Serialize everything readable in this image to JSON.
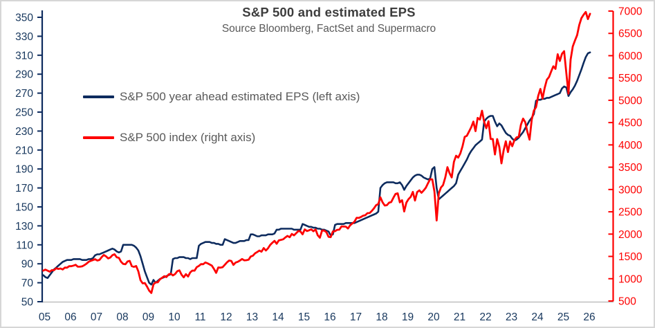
{
  "header": {
    "title": "S&P 500 and estimated EPS",
    "subtitle": "Source Bloomberg, FactSet and Supermacro"
  },
  "legend": {
    "items": [
      {
        "label": "S&P 500 year ahead estimated EPS (left axis)",
        "color": "#0d2b5e",
        "series": "eps"
      },
      {
        "label": "S&P 500 index (right axis)",
        "color": "#fe0000",
        "series": "index"
      }
    ]
  },
  "colors": {
    "navy_line": "#0d2b5e",
    "red_line": "#fe0000",
    "axis_label_navy": "#17375d",
    "axis_label_red": "#fe0000",
    "baseline_gray": "#bfbfbf",
    "title_gray": "#3d3d3d",
    "subtitle_gray": "#595959"
  },
  "chart_data": {
    "type": "line",
    "title": "S&P 500 and estimated EPS",
    "source_note": "Source Bloomberg, FactSet and Supermacro",
    "legend_entries": [
      "S&P 500 year ahead estimated EPS (left axis)",
      "S&P 500 index (right axis)"
    ],
    "grid": false,
    "legend_position": "inside-top-left",
    "x_axis": {
      "labels": [
        "05",
        "06",
        "07",
        "08",
        "09",
        "10",
        "11",
        "12",
        "13",
        "14",
        "15",
        "16",
        "17",
        "18",
        "19",
        "20",
        "21",
        "22",
        "23",
        "24",
        "25",
        "26"
      ],
      "start_year": 2005,
      "end_year": 2026,
      "interval": "monthly",
      "color": "#17375d"
    },
    "left_axis": {
      "title": "S&P 500 year ahead estimated EPS",
      "min": 50,
      "max": 350,
      "step": 20,
      "color": "#0d2b5e",
      "label_color": "#17375d"
    },
    "right_axis": {
      "title": "S&P 500 index",
      "min": 500,
      "max": 7000,
      "step": 500,
      "color": "#fe0000",
      "label_color": "#fe0000"
    },
    "axis_line_gray": "#bfbfbf",
    "series": [
      {
        "id": "eps",
        "name": "S&P 500 year ahead estimated EPS",
        "axis": "left",
        "color": "#0d2b5e",
        "start": "2005-01",
        "interval": "monthly",
        "values": [
          78,
          76,
          75,
          78,
          81,
          84,
          86,
          88,
          90,
          92,
          93,
          94,
          94,
          94,
          95,
          95,
          95,
          95,
          94,
          94,
          94,
          95,
          95,
          96,
          99,
          100,
          100,
          101,
          102,
          103,
          104,
          105,
          106,
          105,
          103,
          102,
          103,
          110,
          110,
          110,
          110,
          110,
          109,
          107,
          104,
          98,
          90,
          82,
          76,
          70,
          68,
          73,
          70,
          72,
          74,
          75,
          76,
          77,
          78,
          79,
          95,
          96,
          96,
          97,
          97,
          97,
          96,
          96,
          95,
          96,
          96,
          96,
          109,
          111,
          112,
          113,
          113,
          113,
          112,
          112,
          111,
          111,
          110,
          110,
          116,
          115,
          114,
          113,
          112,
          112,
          113,
          114,
          114,
          114,
          115,
          115,
          121,
          121,
          120,
          119,
          119,
          120,
          120,
          120,
          121,
          121,
          121,
          122,
          126,
          126,
          127,
          127,
          127,
          127,
          127,
          127,
          126,
          126,
          126,
          126,
          132,
          131,
          130,
          129,
          129,
          128,
          128,
          127,
          127,
          126,
          126,
          125,
          124,
          120,
          121,
          131,
          132,
          132,
          132,
          132,
          133,
          133,
          133,
          133,
          133,
          134,
          135,
          136,
          137,
          138,
          139,
          140,
          141,
          142,
          143,
          145,
          170,
          173,
          175,
          176,
          176,
          176,
          176,
          175,
          175,
          176,
          173,
          168,
          172,
          175,
          178,
          181,
          183,
          184,
          184,
          183,
          181,
          180,
          179,
          180,
          190,
          192,
          170,
          158,
          160,
          162,
          164,
          166,
          168,
          170,
          172,
          175,
          184,
          188,
          192,
          196,
          200,
          205,
          209,
          212,
          215,
          217,
          219,
          221,
          240,
          243,
          245,
          246,
          246,
          240,
          235,
          238,
          236,
          232,
          228,
          226,
          225,
          222,
          220,
          221,
          223,
          226,
          229,
          233,
          237,
          241,
          244,
          248,
          262,
          263,
          263,
          264,
          264,
          265,
          265,
          266,
          267,
          268,
          269,
          270,
          275,
          277,
          276,
          267,
          271,
          274,
          278,
          283,
          289,
          295,
          302,
          308,
          312,
          313
        ]
      },
      {
        "id": "index",
        "name": "S&P 500 index",
        "axis": "right",
        "color": "#fe0000",
        "start": "2005-01",
        "interval": "monthly",
        "values": [
          1181,
          1204,
          1181,
          1157,
          1192,
          1191,
          1234,
          1220,
          1229,
          1207,
          1249,
          1248,
          1280,
          1281,
          1295,
          1311,
          1270,
          1270,
          1277,
          1304,
          1336,
          1378,
          1401,
          1418,
          1438,
          1407,
          1421,
          1482,
          1531,
          1503,
          1455,
          1474,
          1527,
          1549,
          1481,
          1468,
          1379,
          1331,
          1323,
          1386,
          1400,
          1280,
          1267,
          1283,
          1166,
          969,
          896,
          903,
          826,
          735,
          680,
          873,
          919,
          919,
          987,
          1021,
          1057,
          1036,
          1096,
          1115,
          1074,
          1104,
          1169,
          1187,
          1089,
          1031,
          1102,
          1049,
          1141,
          1183,
          1181,
          1258,
          1286,
          1327,
          1326,
          1364,
          1345,
          1321,
          1292,
          1219,
          1131,
          1253,
          1247,
          1258,
          1312,
          1366,
          1408,
          1398,
          1310,
          1362,
          1379,
          1407,
          1441,
          1412,
          1416,
          1426,
          1498,
          1515,
          1569,
          1598,
          1631,
          1606,
          1686,
          1633,
          1682,
          1757,
          1806,
          1848,
          1783,
          1859,
          1872,
          1884,
          1924,
          1960,
          1931,
          2003,
          1972,
          2018,
          2068,
          2059,
          1995,
          2105,
          2068,
          2086,
          2107,
          2063,
          2104,
          1972,
          1920,
          2079,
          2080,
          2044,
          1940,
          1932,
          2060,
          2065,
          2097,
          2099,
          2174,
          2171,
          2168,
          2126,
          2199,
          2239,
          2279,
          2364,
          2363,
          2384,
          2412,
          2423,
          2470,
          2472,
          2519,
          2575,
          2648,
          2674,
          2824,
          2714,
          2641,
          2648,
          2705,
          2718,
          2816,
          2902,
          2914,
          2712,
          2760,
          2507,
          2704,
          2784,
          2834,
          2946,
          2752,
          2942,
          2980,
          2926,
          2977,
          3038,
          3141,
          3231,
          3226,
          2954,
          2305,
          2912,
          3044,
          3100,
          3271,
          3500,
          3363,
          3270,
          3622,
          3756,
          3714,
          3811,
          3973,
          4181,
          4204,
          4298,
          4395,
          4523,
          4308,
          4605,
          4567,
          4766,
          4516,
          4374,
          4530,
          4132,
          4132,
          3785,
          4130,
          3955,
          3586,
          3872,
          4080,
          3840,
          4077,
          3970,
          4109,
          4169,
          4180,
          4450,
          4589,
          4508,
          4288,
          4117,
          4568,
          4770,
          4846,
          5096,
          5254,
          5036,
          5278,
          5460,
          5522,
          5648,
          5762,
          5705,
          6032,
          5882,
          6041,
          6100,
          5612,
          5150,
          5912,
          6205,
          6340,
          6460,
          6688,
          6840,
          6920,
          6980,
          6820,
          6940
        ]
      }
    ]
  }
}
